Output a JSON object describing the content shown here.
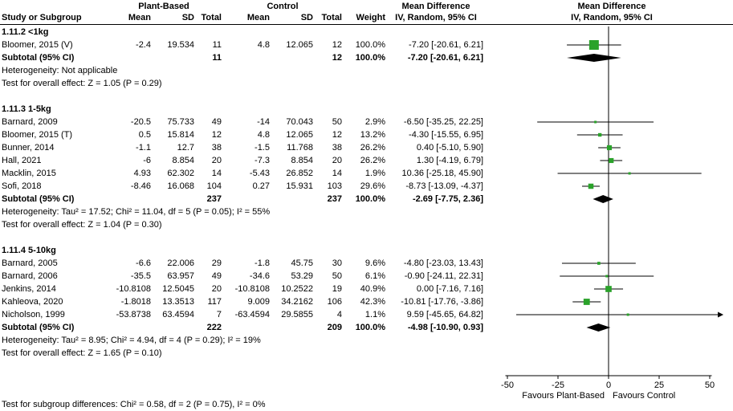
{
  "header": {
    "plant_based": "Plant-Based",
    "control": "Control",
    "mean_difference": "Mean Difference"
  },
  "columns": {
    "study": "Study or Subgroup",
    "mean": "Mean",
    "sd": "SD",
    "total": "Total",
    "weight": "Weight",
    "method": "IV, Random, 95% CI"
  },
  "footer": {
    "subgroup_test": "Test for subgroup differences: Chi² = 0.58, df = 2 (P = 0.75), I² = 0%"
  },
  "colors": {
    "marker_green": "#2aa22a",
    "diamond_black": "#000000",
    "line_black": "#000000"
  },
  "chart_data": {
    "type": "forest",
    "effect_measure": "Mean Difference",
    "method": "IV, Random, 95% CI",
    "x_ticks": [
      -50,
      -25,
      0,
      25,
      50
    ],
    "favours_left": "Favours Plant-Based",
    "favours_right": "Favours Control",
    "rows": [
      {
        "type": "heading",
        "study": "1.11.2 <1kg"
      },
      {
        "type": "study",
        "study": "Bloomer, 2015 (V)",
        "m1": "-2.4",
        "sd1": "19.534",
        "t1": "11",
        "m2": "4.8",
        "sd2": "12.065",
        "t2": "12",
        "w": "100.0%",
        "ci": "-7.20 [-20.61, 6.21]",
        "est": -7.2,
        "lo": -20.61,
        "hi": 6.21,
        "weight": 100.0
      },
      {
        "type": "subtotal",
        "study": "Subtotal (95% CI)",
        "t1": "11",
        "t2": "12",
        "w": "100.0%",
        "ci": "-7.20 [-20.61, 6.21]",
        "est": -7.2,
        "lo": -20.61,
        "hi": 6.21
      },
      {
        "type": "note",
        "text": "Heterogeneity: Not applicable"
      },
      {
        "type": "note",
        "text": "Test for overall effect: Z = 1.05 (P = 0.29)"
      },
      {
        "type": "spacer"
      },
      {
        "type": "heading",
        "study": "1.11.3 1-5kg"
      },
      {
        "type": "study",
        "study": "Barnard, 2009",
        "m1": "-20.5",
        "sd1": "75.733",
        "t1": "49",
        "m2": "-14",
        "sd2": "70.043",
        "t2": "50",
        "w": "2.9%",
        "ci": "-6.50 [-35.25, 22.25]",
        "est": -6.5,
        "lo": -35.25,
        "hi": 22.25,
        "weight": 2.9
      },
      {
        "type": "study",
        "study": "Bloomer, 2015 (T)",
        "m1": "0.5",
        "sd1": "15.814",
        "t1": "12",
        "m2": "4.8",
        "sd2": "12.065",
        "t2": "12",
        "w": "13.2%",
        "ci": "-4.30 [-15.55, 6.95]",
        "est": -4.3,
        "lo": -15.55,
        "hi": 6.95,
        "weight": 13.2
      },
      {
        "type": "study",
        "study": "Bunner, 2014",
        "m1": "-1.1",
        "sd1": "12.7",
        "t1": "38",
        "m2": "-1.5",
        "sd2": "11.768",
        "t2": "38",
        "w": "26.2%",
        "ci": "0.40 [-5.10, 5.90]",
        "est": 0.4,
        "lo": -5.1,
        "hi": 5.9,
        "weight": 26.2
      },
      {
        "type": "study",
        "study": "Hall, 2021",
        "m1": "-6",
        "sd1": "8.854",
        "t1": "20",
        "m2": "-7.3",
        "sd2": "8.854",
        "t2": "20",
        "w": "26.2%",
        "ci": "1.30 [-4.19, 6.79]",
        "est": 1.3,
        "lo": -4.19,
        "hi": 6.79,
        "weight": 26.2
      },
      {
        "type": "study",
        "study": "Macklin, 2015",
        "m1": "4.93",
        "sd1": "62.302",
        "t1": "14",
        "m2": "-5.43",
        "sd2": "26.852",
        "t2": "14",
        "w": "1.9%",
        "ci": "10.36 [-25.18, 45.90]",
        "est": 10.36,
        "lo": -25.18,
        "hi": 45.9,
        "weight": 1.9
      },
      {
        "type": "study",
        "study": "Sofi, 2018",
        "m1": "-8.46",
        "sd1": "16.068",
        "t1": "104",
        "m2": "0.27",
        "sd2": "15.931",
        "t2": "103",
        "w": "29.6%",
        "ci": "-8.73 [-13.09, -4.37]",
        "est": -8.73,
        "lo": -13.09,
        "hi": -4.37,
        "weight": 29.6
      },
      {
        "type": "subtotal",
        "study": "Subtotal (95% CI)",
        "t1": "237",
        "t2": "237",
        "w": "100.0%",
        "ci": "-2.69 [-7.75, 2.36]",
        "est": -2.69,
        "lo": -7.75,
        "hi": 2.36
      },
      {
        "type": "note",
        "text": "Heterogeneity: Tau² = 17.52; Chi² = 11.04, df = 5 (P = 0.05); I² = 55%"
      },
      {
        "type": "note",
        "text": "Test for overall effect: Z = 1.04 (P = 0.30)"
      },
      {
        "type": "spacer"
      },
      {
        "type": "heading",
        "study": "1.11.4 5-10kg"
      },
      {
        "type": "study",
        "study": "Barnard, 2005",
        "m1": "-6.6",
        "sd1": "22.006",
        "t1": "29",
        "m2": "-1.8",
        "sd2": "45.75",
        "t2": "30",
        "w": "9.6%",
        "ci": "-4.80 [-23.03, 13.43]",
        "est": -4.8,
        "lo": -23.03,
        "hi": 13.43,
        "weight": 9.6
      },
      {
        "type": "study",
        "study": "Barnard, 2006",
        "m1": "-35.5",
        "sd1": "63.957",
        "t1": "49",
        "m2": "-34.6",
        "sd2": "53.29",
        "t2": "50",
        "w": "6.1%",
        "ci": "-0.90 [-24.11, 22.31]",
        "est": -0.9,
        "lo": -24.11,
        "hi": 22.31,
        "weight": 6.1
      },
      {
        "type": "study",
        "study": "Jenkins, 2014",
        "m1": "-10.8108",
        "sd1": "12.5045",
        "t1": "20",
        "m2": "-10.8108",
        "sd2": "10.2522",
        "t2": "19",
        "w": "40.9%",
        "ci": "0.00 [-7.16, 7.16]",
        "est": 0.0,
        "lo": -7.16,
        "hi": 7.16,
        "weight": 40.9
      },
      {
        "type": "study",
        "study": "Kahleova, 2020",
        "m1": "-1.8018",
        "sd1": "13.3513",
        "t1": "117",
        "m2": "9.009",
        "sd2": "34.2162",
        "t2": "106",
        "w": "42.3%",
        "ci": "-10.81 [-17.76, -3.86]",
        "est": -10.81,
        "lo": -17.76,
        "hi": -3.86,
        "weight": 42.3
      },
      {
        "type": "study",
        "study": "Nicholson, 1999",
        "m1": "-53.8738",
        "sd1": "63.4594",
        "t1": "7",
        "m2": "-63.4594",
        "sd2": "29.5855",
        "t2": "4",
        "w": "1.1%",
        "ci": "9.59 [-45.65, 64.82]",
        "est": 9.59,
        "lo": -45.65,
        "hi": 64.82,
        "weight": 1.1
      },
      {
        "type": "subtotal",
        "study": "Subtotal (95% CI)",
        "t1": "222",
        "t2": "209",
        "w": "100.0%",
        "ci": "-4.98 [-10.90, 0.93]",
        "est": -4.98,
        "lo": -10.9,
        "hi": 0.93
      },
      {
        "type": "note",
        "text": "Heterogeneity: Tau² = 8.95; Chi² = 4.94, df = 4 (P = 0.29); I² = 19%"
      },
      {
        "type": "note",
        "text": "Test for overall effect: Z = 1.65 (P = 0.10)"
      }
    ]
  }
}
